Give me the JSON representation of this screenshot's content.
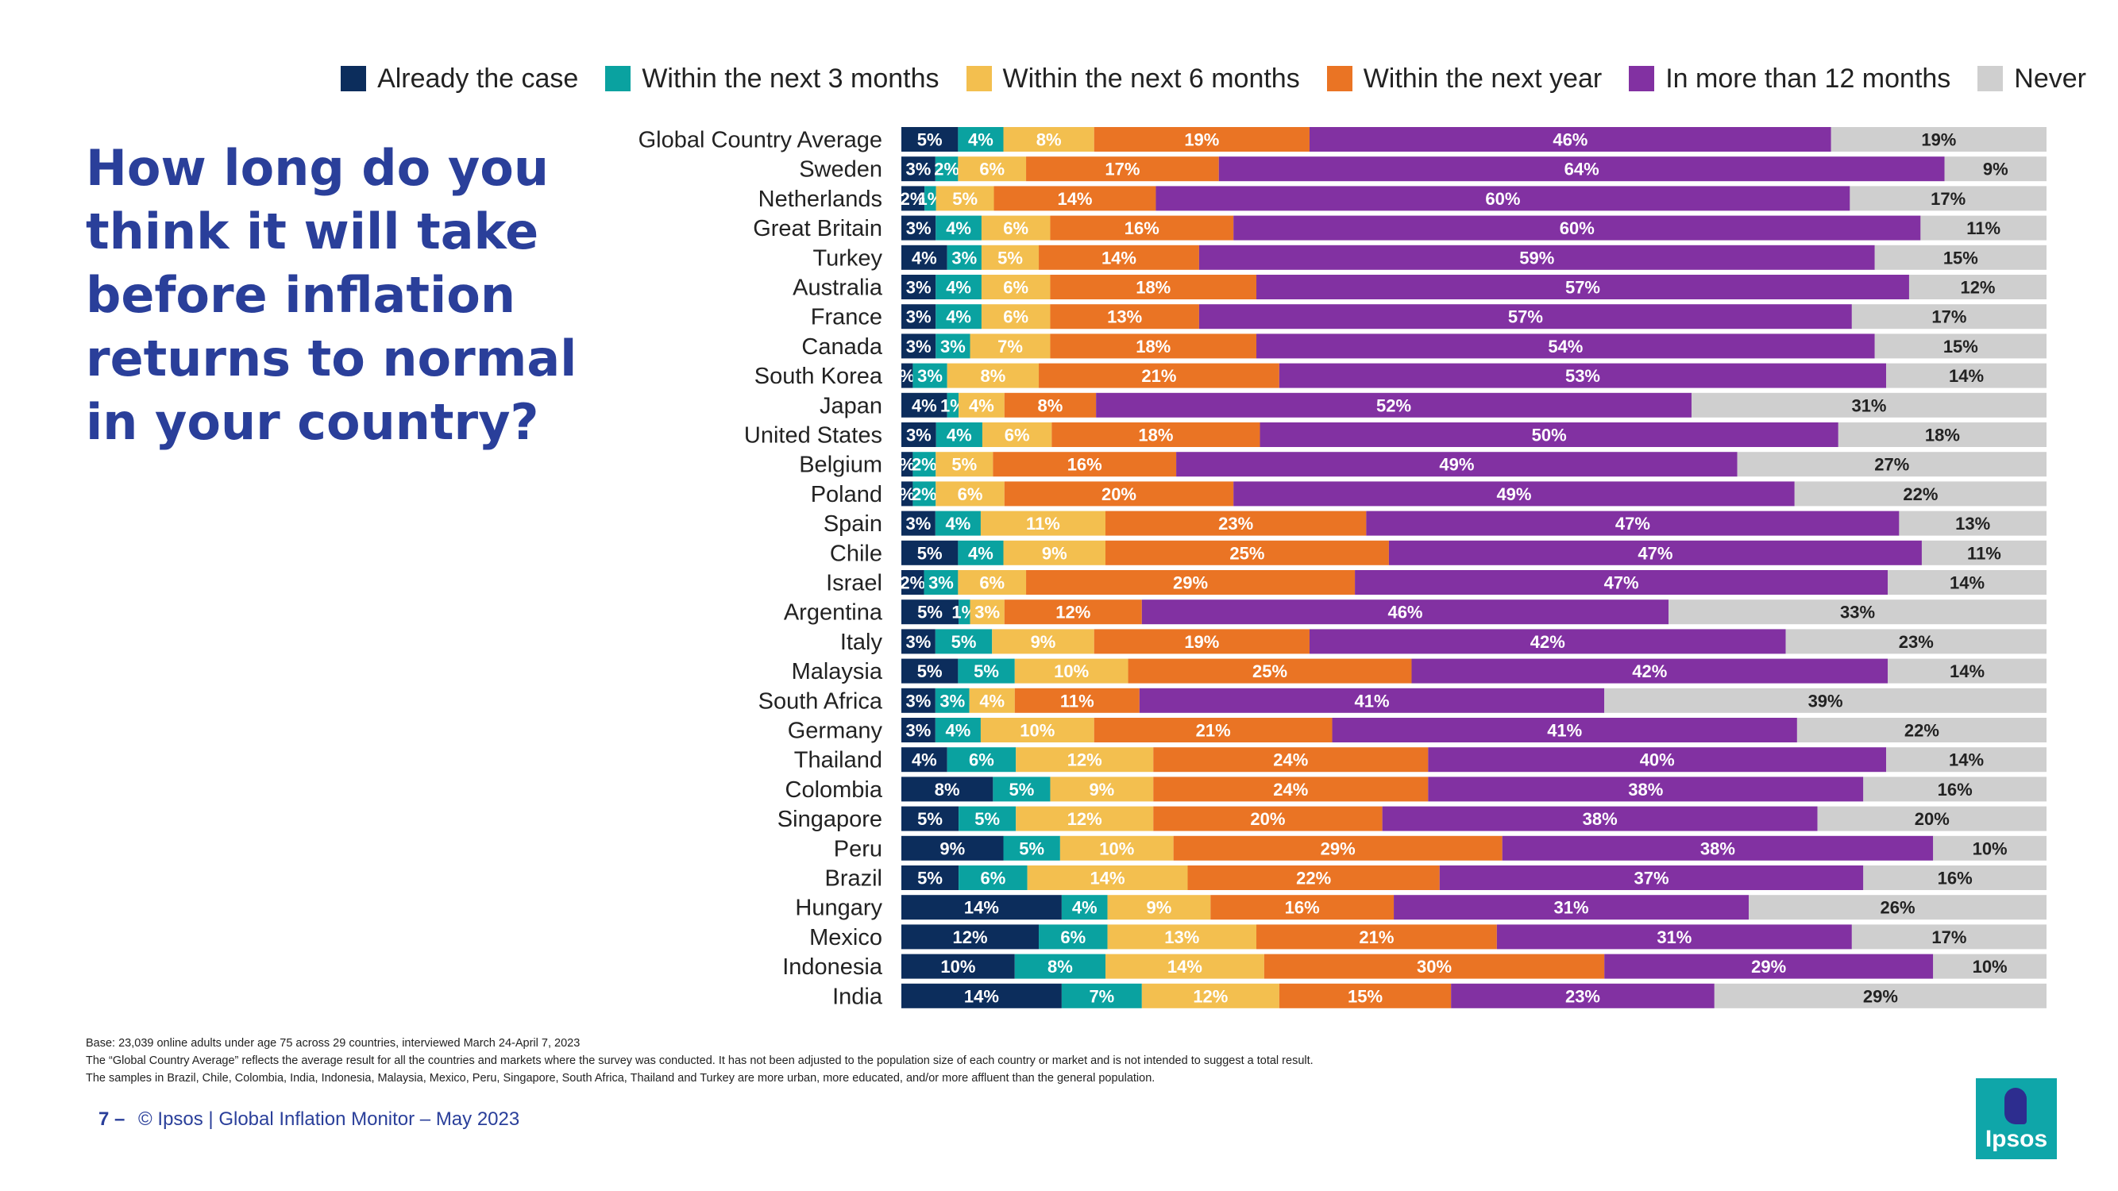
{
  "title": "How long do you think it will take before inflation returns to normal in your country?",
  "colors": [
    "#0c2d5c",
    "#0aa2a0",
    "#f3bf4f",
    "#ea7424",
    "#8231a2",
    "#cfcfcf"
  ],
  "legend": [
    "Already the case",
    "Within the next 3 months",
    "Within the next 6 months",
    "Within the next year",
    "In more than 12 months",
    "Never"
  ],
  "chart_data": {
    "type": "bar",
    "orientation": "horizontal",
    "stacked": true,
    "categories": [
      "Global Country Average",
      "Sweden",
      "Netherlands",
      "Great Britain",
      "Turkey",
      "Australia",
      "France",
      "Canada",
      "South Korea",
      "Japan",
      "United States",
      "Belgium",
      "Poland",
      "Spain",
      "Chile",
      "Israel",
      "Argentina",
      "Italy",
      "Malaysia",
      "South Africa",
      "Germany",
      "Thailand",
      "Colombia",
      "Singapore",
      "Peru",
      "Brazil",
      "Hungary",
      "Mexico",
      "Indonesia",
      "India"
    ],
    "series": [
      {
        "name": "Already the case",
        "values": [
          5,
          3,
          2,
          3,
          4,
          3,
          3,
          3,
          1,
          4,
          3,
          1,
          1,
          3,
          5,
          2,
          5,
          3,
          5,
          3,
          3,
          4,
          8,
          5,
          9,
          5,
          14,
          12,
          10,
          14
        ]
      },
      {
        "name": "Within the next 3 months",
        "values": [
          4,
          2,
          1,
          4,
          3,
          4,
          4,
          3,
          3,
          1,
          4,
          2,
          2,
          4,
          4,
          3,
          1,
          5,
          5,
          3,
          4,
          6,
          5,
          5,
          5,
          6,
          4,
          6,
          8,
          7
        ]
      },
      {
        "name": "Within the next 6 months",
        "values": [
          8,
          6,
          5,
          6,
          5,
          6,
          6,
          7,
          8,
          4,
          6,
          5,
          6,
          11,
          9,
          6,
          3,
          9,
          10,
          4,
          10,
          12,
          9,
          12,
          10,
          14,
          9,
          13,
          14,
          12
        ]
      },
      {
        "name": "Within the next year",
        "values": [
          19,
          17,
          14,
          16,
          14,
          18,
          13,
          18,
          21,
          8,
          18,
          16,
          20,
          23,
          25,
          29,
          12,
          19,
          25,
          11,
          21,
          24,
          24,
          20,
          29,
          22,
          16,
          21,
          30,
          15
        ]
      },
      {
        "name": "In more than 12 months",
        "values": [
          46,
          64,
          60,
          60,
          59,
          57,
          57,
          54,
          53,
          52,
          50,
          49,
          49,
          47,
          47,
          47,
          46,
          42,
          42,
          41,
          41,
          40,
          38,
          38,
          38,
          37,
          31,
          31,
          29,
          23
        ]
      },
      {
        "name": "Never",
        "values": [
          19,
          9,
          17,
          11,
          15,
          12,
          17,
          15,
          14,
          31,
          18,
          27,
          22,
          13,
          11,
          14,
          33,
          23,
          14,
          39,
          22,
          14,
          16,
          20,
          10,
          16,
          26,
          17,
          10,
          29
        ]
      }
    ],
    "value_labels": [
      [
        "5%",
        "4%",
        "8%",
        "19%",
        "46%",
        "19%"
      ],
      [
        "3%",
        "2%",
        "6%",
        "17%",
        "64%",
        "9%"
      ],
      [
        "2%",
        "1%",
        "5%",
        "14%",
        "60%",
        "17%"
      ],
      [
        "3%",
        "4%",
        "6%",
        "16%",
        "60%",
        "11%"
      ],
      [
        "4%",
        "3%",
        "5%",
        "14%",
        "59%",
        "15%"
      ],
      [
        "3%",
        "4%",
        "6%",
        "18%",
        "57%",
        "12%"
      ],
      [
        "3%",
        "4%",
        "6%",
        "13%",
        "57%",
        "17%"
      ],
      [
        "3%",
        "3%",
        "7%",
        "18%",
        "54%",
        "15%"
      ],
      [
        "%",
        "3%",
        "8%",
        "21%",
        "53%",
        "14%"
      ],
      [
        "4%",
        "1%",
        "4%",
        "8%",
        "52%",
        "31%"
      ],
      [
        "3%",
        "4%",
        "6%",
        "18%",
        "50%",
        "18%"
      ],
      [
        "%",
        "2%",
        "5%",
        "16%",
        "49%",
        "27%"
      ],
      [
        "%",
        "2%",
        "6%",
        "20%",
        "49%",
        "22%"
      ],
      [
        "3%",
        "4%",
        "11%",
        "23%",
        "47%",
        "13%"
      ],
      [
        "5%",
        "4%",
        "9%",
        "25%",
        "47%",
        "11%"
      ],
      [
        "2%",
        "3%",
        "6%",
        "29%",
        "47%",
        "14%"
      ],
      [
        "5%",
        "1%",
        "3%",
        "12%",
        "46%",
        "33%"
      ],
      [
        "3%",
        "5%",
        "9%",
        "19%",
        "42%",
        "23%"
      ],
      [
        "5%",
        "5%",
        "10%",
        "25%",
        "42%",
        "14%"
      ],
      [
        "3%",
        "3%",
        "4%",
        "11%",
        "41%",
        "39%"
      ],
      [
        "3%",
        "4%",
        "10%",
        "21%",
        "41%",
        "22%"
      ],
      [
        "4%",
        "6%",
        "12%",
        "24%",
        "40%",
        "14%"
      ],
      [
        "8%",
        "5%",
        "9%",
        "24%",
        "38%",
        "16%"
      ],
      [
        "5%",
        "5%",
        "12%",
        "20%",
        "38%",
        "20%"
      ],
      [
        "9%",
        "5%",
        "10%",
        "29%",
        "38%",
        "10%"
      ],
      [
        "5%",
        "6%",
        "14%",
        "22%",
        "37%",
        "16%"
      ],
      [
        "14%",
        "4%",
        "9%",
        "16%",
        "31%",
        "26%"
      ],
      [
        "12%",
        "6%",
        "13%",
        "21%",
        "31%",
        "17%"
      ],
      [
        "10%",
        "8%",
        "14%",
        "30%",
        "29%",
        "10%"
      ],
      [
        "14%",
        "7%",
        "12%",
        "15%",
        "23%",
        "29%"
      ]
    ],
    "xlim": [
      0,
      100
    ],
    "legend_position": "top"
  },
  "notes": [
    "Base: 23,039 online adults under age 75 across 29 countries, interviewed March 24-April 7, 2023",
    "The “Global Country Average” reflects the average result for all the countries and markets where the survey was conducted. It has not been adjusted to the population size of each country or market and is not intended to suggest a total result.",
    "The samples in Brazil, Chile, Colombia, India, Indonesia, Malaysia, Mexico, Peru, Singapore, South Africa, Thailand and Turkey are more urban, more educated, and/or more affluent than the general population."
  ],
  "footer": {
    "page": "7 –",
    "text": "© Ipsos | Global Inflation Monitor – May 2023"
  },
  "logo_text": "Ipsos"
}
